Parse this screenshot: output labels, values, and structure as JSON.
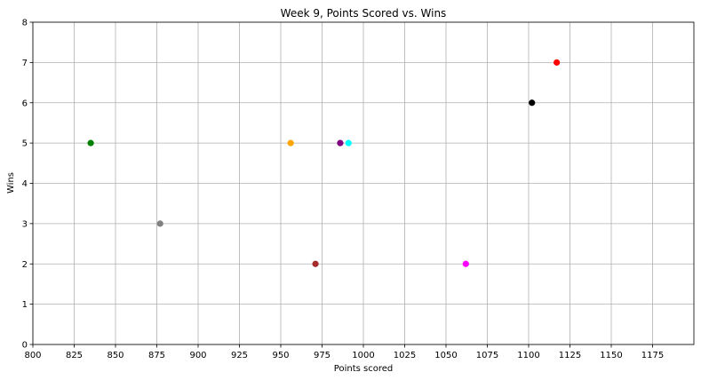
{
  "chart_data": {
    "type": "scatter",
    "title": "Week 9, Points Scored vs. Wins",
    "xlabel": "Points scored",
    "ylabel": "Wins",
    "xlim": [
      800,
      1200
    ],
    "ylim": [
      0,
      8
    ],
    "xticks": [
      800,
      825,
      850,
      875,
      900,
      925,
      950,
      975,
      1000,
      1025,
      1050,
      1075,
      1100,
      1125,
      1150,
      1175
    ],
    "yticks": [
      0,
      1,
      2,
      3,
      4,
      5,
      6,
      7,
      8
    ],
    "grid": true,
    "points": [
      {
        "x": 835,
        "y": 5,
        "color": "#008000"
      },
      {
        "x": 877,
        "y": 3,
        "color": "#808080"
      },
      {
        "x": 956,
        "y": 5,
        "color": "#ffa500"
      },
      {
        "x": 971,
        "y": 2,
        "color": "#a52a2a"
      },
      {
        "x": 986,
        "y": 5,
        "color": "#800080"
      },
      {
        "x": 991,
        "y": 5,
        "color": "#00ffff"
      },
      {
        "x": 1062,
        "y": 2,
        "color": "#ff00ff"
      },
      {
        "x": 1102,
        "y": 6,
        "color": "#000000"
      },
      {
        "x": 1117,
        "y": 7,
        "color": "#ff0000"
      }
    ]
  }
}
